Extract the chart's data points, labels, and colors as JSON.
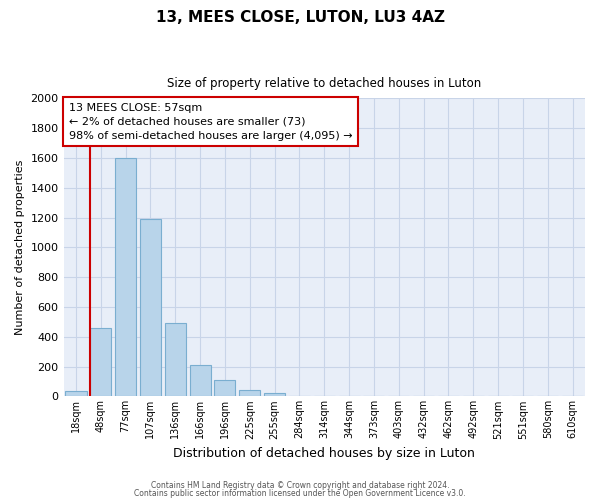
{
  "title": "13, MEES CLOSE, LUTON, LU3 4AZ",
  "subtitle": "Size of property relative to detached houses in Luton",
  "xlabel": "Distribution of detached houses by size in Luton",
  "ylabel": "Number of detached properties",
  "bar_labels": [
    "18sqm",
    "48sqm",
    "77sqm",
    "107sqm",
    "136sqm",
    "166sqm",
    "196sqm",
    "225sqm",
    "255sqm",
    "284sqm",
    "314sqm",
    "344sqm",
    "373sqm",
    "403sqm",
    "432sqm",
    "462sqm",
    "492sqm",
    "521sqm",
    "551sqm",
    "580sqm",
    "610sqm"
  ],
  "bar_heights": [
    35,
    460,
    1600,
    1190,
    490,
    210,
    110,
    45,
    20,
    5,
    0,
    0,
    0,
    0,
    0,
    0,
    0,
    0,
    0,
    0,
    0
  ],
  "bar_color": "#b8d4ea",
  "bar_edge_color": "#7aaed0",
  "property_line_color": "#cc0000",
  "annotation_line1": "13 MEES CLOSE: 57sqm",
  "annotation_line2": "← 2% of detached houses are smaller (73)",
  "annotation_line3": "98% of semi-detached houses are larger (4,095) →",
  "annotation_box_color": "#ffffff",
  "annotation_box_edge_color": "#cc0000",
  "ylim": [
    0,
    2000
  ],
  "yticks": [
    0,
    200,
    400,
    600,
    800,
    1000,
    1200,
    1400,
    1600,
    1800,
    2000
  ],
  "footer_line1": "Contains HM Land Registry data © Crown copyright and database right 2024.",
  "footer_line2": "Contains public sector information licensed under the Open Government Licence v3.0.",
  "bg_color": "#ffffff",
  "grid_color": "#c8d4e8"
}
